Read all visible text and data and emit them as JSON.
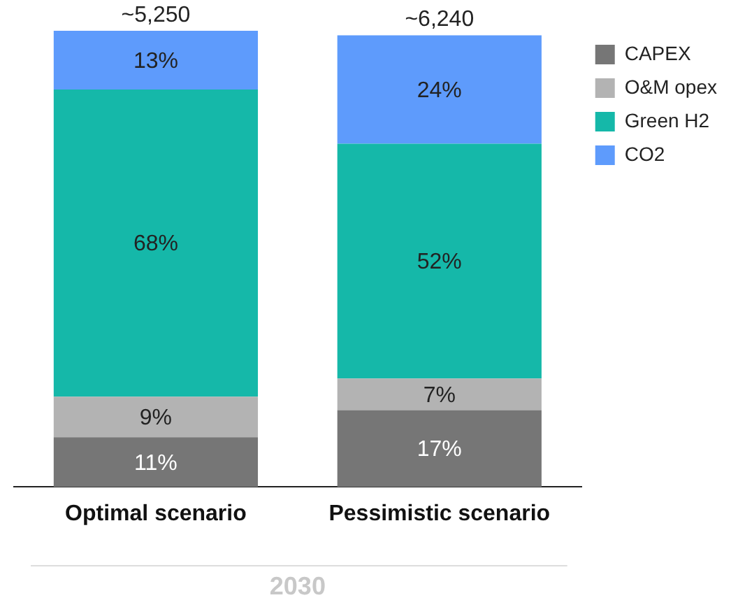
{
  "chart_data": {
    "type": "bar",
    "stacked": true,
    "xlabel": "2030",
    "categories": [
      "Optimal scenario",
      "Pessimistic scenario"
    ],
    "series": [
      {
        "name": "CAPEX",
        "color": "#767676",
        "values": [
          11,
          17
        ],
        "value_labels": [
          "11%",
          "17%"
        ]
      },
      {
        "name": "O&M opex",
        "color": "#b3b3b3",
        "values": [
          9,
          7
        ],
        "value_labels": [
          "9%",
          "7%"
        ]
      },
      {
        "name": "Green H2",
        "color": "#15b8a9",
        "values": [
          68,
          52
        ],
        "value_labels": [
          "68%",
          "52%"
        ]
      },
      {
        "name": "CO2",
        "color": "#5e9bfc",
        "values": [
          13,
          24
        ],
        "value_labels": [
          "13%",
          "24%"
        ]
      }
    ],
    "annotations": [
      "~5,250",
      "~6,240"
    ],
    "legend": "right",
    "tick_labels": "x",
    "grid": false
  }
}
